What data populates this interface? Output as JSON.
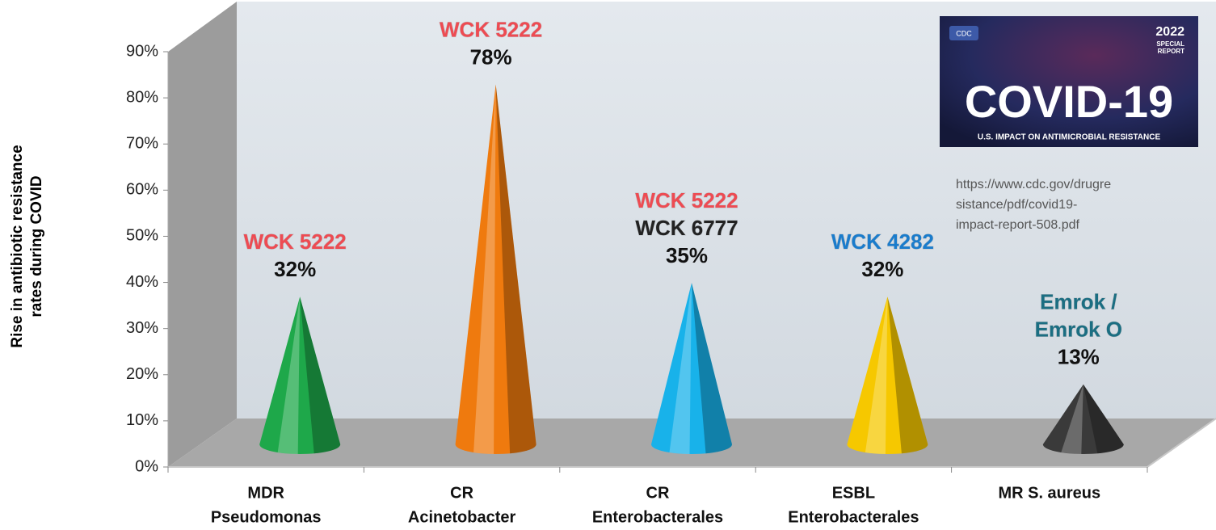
{
  "chart_data": {
    "type": "cone3d",
    "y_label": [
      "Rise in antibiotic resistance",
      "rates during  COVID"
    ],
    "categories": [
      [
        "MDR",
        "Pseudomonas"
      ],
      [
        "CR",
        "Acinetobacter"
      ],
      [
        "CR",
        "Enterobacterales"
      ],
      [
        "ESBL",
        "Enterobacterales"
      ],
      [
        "MR S. aureus"
      ]
    ],
    "values": [
      32,
      78,
      35,
      32,
      13
    ],
    "value_labels": [
      "32%",
      "78%",
      "35%",
      "32%",
      "13%"
    ],
    "colors": [
      "#1ea84a",
      "#ef7a0e",
      "#18b2ea",
      "#f6c800",
      "#3a3a3a"
    ],
    "annotations": [
      [
        {
          "text": "WCK 5222",
          "color": "#ee4b52"
        }
      ],
      [
        {
          "text": "WCK 5222",
          "color": "#ee4b52"
        }
      ],
      [
        {
          "text": "WCK 5222",
          "color": "#ee4b52"
        },
        {
          "text": "WCK 6777",
          "color": "#222222"
        }
      ],
      [
        {
          "text": "WCK 4282",
          "color": "#1a7ccc"
        }
      ],
      [
        {
          "text": "Emrok /",
          "color": "#1b6e82"
        },
        {
          "text": "Emrok O",
          "color": "#1b6e82"
        }
      ]
    ],
    "ylim": [
      0,
      90
    ],
    "yticks": [
      {
        "value": 0,
        "label": "0%"
      },
      {
        "value": 10,
        "label": "10%"
      },
      {
        "value": 20,
        "label": "20%"
      },
      {
        "value": 30,
        "label": "30%"
      },
      {
        "value": 40,
        "label": "40%"
      },
      {
        "value": 50,
        "label": "50%"
      },
      {
        "value": 60,
        "label": "60%"
      },
      {
        "value": 70,
        "label": "70%"
      },
      {
        "value": 80,
        "label": "80%"
      },
      {
        "value": 90,
        "label": "90%"
      }
    ],
    "inset": {
      "logo": "CDC",
      "year": "2022",
      "badge": [
        "SPECIAL",
        "REPORT"
      ],
      "title": "COVID-19",
      "subtitle": "U.S. IMPACT ON ANTIMICROBIAL RESISTANCE"
    },
    "source": [
      "https://www.cdc.gov/drugre",
      "sistance/pdf/covid19-",
      "impact-report-508.pdf"
    ]
  }
}
